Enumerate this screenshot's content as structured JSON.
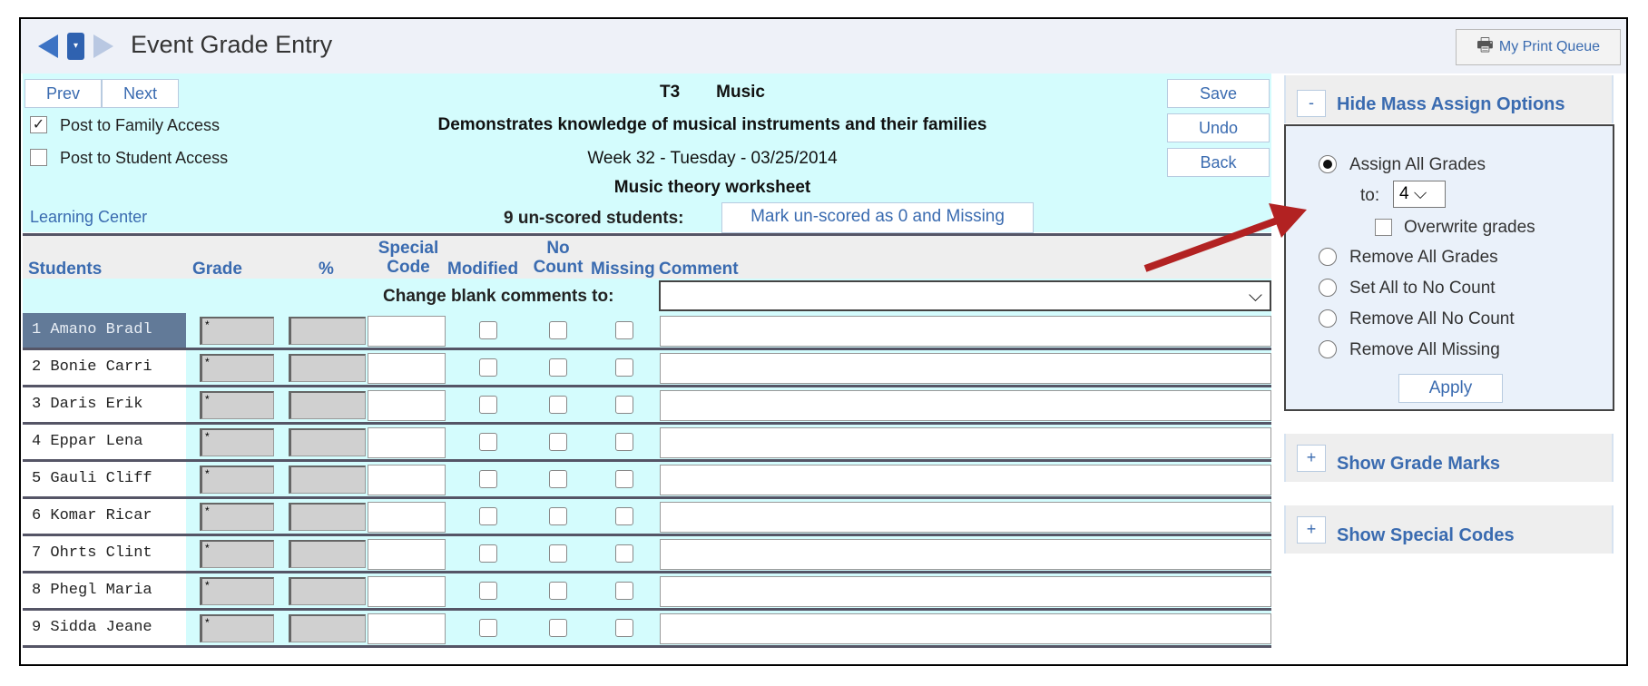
{
  "header": {
    "title": "Event Grade Entry",
    "print_queue": "My Print Queue"
  },
  "toolbar": {
    "prev": "Prev",
    "next": "Next",
    "save": "Save",
    "undo": "Undo",
    "back": "Back"
  },
  "options": {
    "post_family": "Post to Family Access",
    "post_family_checked": true,
    "post_student": "Post to Student Access",
    "post_student_checked": false,
    "learning_center": "Learning Center"
  },
  "event": {
    "term": "T3",
    "course": "Music",
    "standard": "Demonstrates knowledge of musical instruments and their families",
    "date": "Week 32 - Tuesday - 03/25/2014",
    "assignment": "Music theory worksheet",
    "unscored": "9 un-scored students:",
    "mark_button": "Mark un-scored as 0 and Missing"
  },
  "columns": {
    "students": "Students",
    "grade": "Grade",
    "percent": "%",
    "special_code": "Special Code",
    "special_code_1": "Special",
    "special_code_2": "Code",
    "modified": "Modified",
    "no_count_1": "No",
    "no_count_2": "Count",
    "missing": "Missing",
    "comment": "Comment"
  },
  "blank_comments_label": "Change blank comments to:",
  "students": [
    {
      "name": "1 Amano Bradl",
      "grade": "*"
    },
    {
      "name": "2 Bonie Carri",
      "grade": "*"
    },
    {
      "name": "3 Daris Erik",
      "grade": "*"
    },
    {
      "name": "4 Eppar Lena",
      "grade": "*"
    },
    {
      "name": "5 Gauli Cliff",
      "grade": "*"
    },
    {
      "name": "6 Komar Ricar",
      "grade": "*"
    },
    {
      "name": "7 Ohrts Clint",
      "grade": "*"
    },
    {
      "name": "8 Phegl Maria",
      "grade": "*"
    },
    {
      "name": "9 Sidda Jeane",
      "grade": "*"
    }
  ],
  "mass_assign": {
    "toggle": "-",
    "header": "Hide Mass Assign Options",
    "assign_all": "Assign All Grades",
    "to_label": "to:",
    "to_value": "4",
    "overwrite": "Overwrite grades",
    "remove_grades": "Remove All Grades",
    "set_no_count": "Set All to No Count",
    "remove_no_count": "Remove All No Count",
    "remove_missing": "Remove All Missing",
    "apply": "Apply",
    "selected": "Assign All Grades"
  },
  "grade_marks": {
    "toggle": "+",
    "header": "Show Grade Marks"
  },
  "special_codes": {
    "toggle": "+",
    "header": "Show Special Codes"
  },
  "colors": {
    "cyan": "#d4fcfd",
    "link": "#3a6bb0",
    "selected_row": "#627a98",
    "arrow": "#b22222"
  }
}
